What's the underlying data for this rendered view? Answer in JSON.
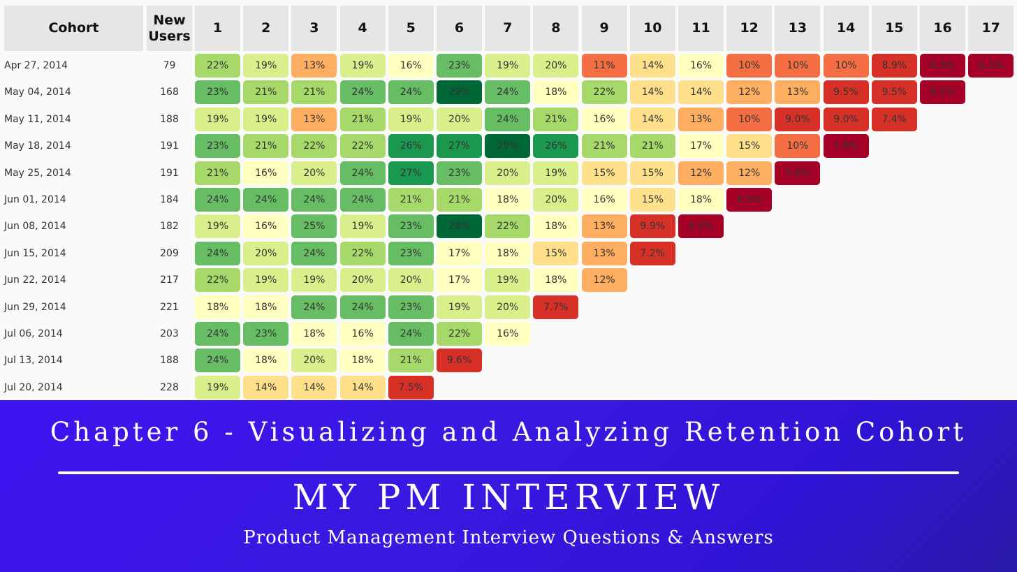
{
  "table": {
    "header": [
      "Cohort",
      "New Users",
      "1",
      "2",
      "3",
      "4",
      "5",
      "6",
      "7",
      "8",
      "9",
      "10",
      "11",
      "12",
      "13",
      "14",
      "15",
      "16",
      "17"
    ],
    "rows": [
      [
        "Apr 27, 2014",
        "79",
        "22%",
        "19%",
        "13%",
        "19%",
        "16%",
        "23%",
        "19%",
        "20%",
        "11%",
        "14%",
        "16%",
        "10%",
        "10%",
        "10%",
        "8.9%",
        "6.3%",
        "6.3%"
      ],
      [
        "May 04, 2014",
        "168",
        "23%",
        "21%",
        "21%",
        "24%",
        "24%",
        "29%",
        "24%",
        "18%",
        "22%",
        "14%",
        "14%",
        "12%",
        "13%",
        "9.5%",
        "9.5%",
        "6.5%"
      ],
      [
        "May 11, 2014",
        "188",
        "19%",
        "19%",
        "13%",
        "21%",
        "19%",
        "20%",
        "24%",
        "21%",
        "16%",
        "14%",
        "13%",
        "10%",
        "9.0%",
        "9.0%",
        "7.4%"
      ],
      [
        "May 18, 2014",
        "191",
        "23%",
        "21%",
        "22%",
        "22%",
        "26%",
        "27%",
        "29%",
        "26%",
        "21%",
        "21%",
        "17%",
        "15%",
        "10%",
        "5.8%"
      ],
      [
        "May 25, 2014",
        "191",
        "21%",
        "16%",
        "20%",
        "24%",
        "27%",
        "23%",
        "20%",
        "19%",
        "15%",
        "15%",
        "12%",
        "12%",
        "5.8%"
      ],
      [
        "Jun 01, 2014",
        "184",
        "24%",
        "24%",
        "24%",
        "24%",
        "21%",
        "21%",
        "18%",
        "20%",
        "16%",
        "15%",
        "18%",
        "6.5%"
      ],
      [
        "Jun 08, 2014",
        "182",
        "19%",
        "16%",
        "25%",
        "19%",
        "23%",
        "28%",
        "22%",
        "18%",
        "13%",
        "9.9%",
        "4.9%"
      ],
      [
        "Jun 15, 2014",
        "209",
        "24%",
        "20%",
        "24%",
        "22%",
        "23%",
        "17%",
        "18%",
        "15%",
        "13%",
        "7.2%"
      ],
      [
        "Jun 22, 2014",
        "217",
        "22%",
        "19%",
        "19%",
        "20%",
        "20%",
        "17%",
        "19%",
        "18%",
        "12%"
      ],
      [
        "Jun 29, 2014",
        "221",
        "18%",
        "18%",
        "24%",
        "24%",
        "23%",
        "19%",
        "20%",
        "7.7%"
      ],
      [
        "Jul 06, 2014",
        "203",
        "24%",
        "23%",
        "18%",
        "16%",
        "24%",
        "22%",
        "16%"
      ],
      [
        "Jul 13, 2014",
        "188",
        "24%",
        "18%",
        "20%",
        "18%",
        "21%",
        "9.6%"
      ],
      [
        "Jul 20, 2014",
        "228",
        "19%",
        "14%",
        "14%",
        "14%",
        "7.5%"
      ]
    ]
  },
  "banner": {
    "chapter": "Chapter 6 - Visualizing and Analyzing Retention Cohort",
    "brand": "MY PM INTERVIEW",
    "tagline": "Product Management Interview Questions & Answers"
  }
}
